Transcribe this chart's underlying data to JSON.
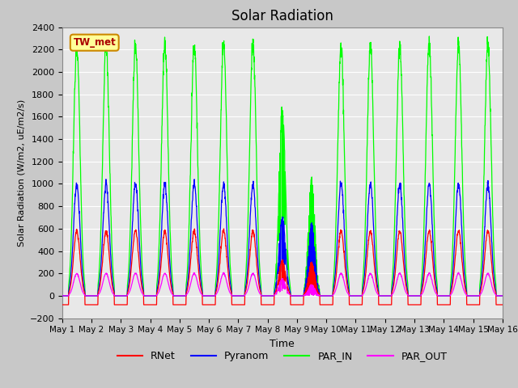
{
  "title": "Solar Radiation",
  "ylabel": "Solar Radiation (W/m2, uE/m2/s)",
  "xlabel": "Time",
  "ylim": [
    -200,
    2400
  ],
  "yticks": [
    -200,
    0,
    200,
    400,
    600,
    800,
    1000,
    1200,
    1400,
    1600,
    1800,
    2000,
    2200,
    2400
  ],
  "colors": {
    "RNet": "#ff0000",
    "Pyranom": "#0000ff",
    "PAR_IN": "#00ff00",
    "PAR_OUT": "#ff00ff"
  },
  "station_label": "TW_met",
  "station_box_facecolor": "#ffff99",
  "station_box_edgecolor": "#cc8800",
  "n_days": 15,
  "points_per_day": 144,
  "peak_RNet": 580,
  "peak_Pyranom": 1000,
  "peak_PAR_IN": 2250,
  "peak_PAR_OUT": 200,
  "night_RNet": -80,
  "day8_max_PAR": 1650,
  "day9_max_PAR": 1050,
  "day9_max_Pyr": 650,
  "day9_max_RNet": 300
}
